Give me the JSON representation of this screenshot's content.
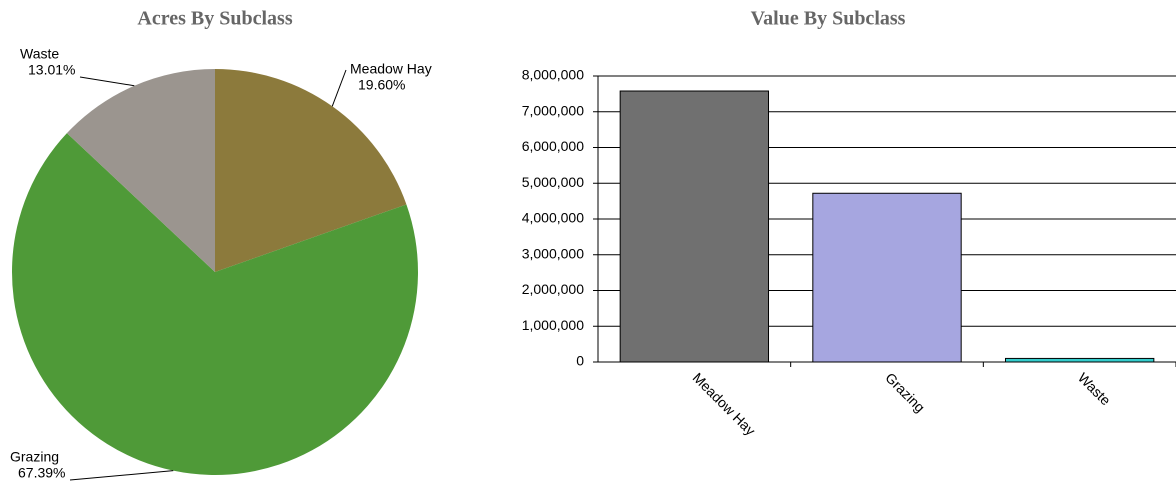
{
  "chart_data": [
    {
      "type": "pie",
      "title": "Acres By Subclass",
      "categories": [
        "Meadow Hay",
        "Grazing",
        "Waste"
      ],
      "values": [
        19.6,
        67.39,
        13.01
      ],
      "value_labels": [
        "19.60%",
        "67.39%",
        "13.01%"
      ],
      "colors": [
        "#8c7a3c",
        "#4f9a38",
        "#9b958f"
      ]
    },
    {
      "type": "bar",
      "title": "Value By Subclass",
      "categories": [
        "Meadow Hay",
        "Grazing",
        "Waste"
      ],
      "values": [
        7580000,
        4720000,
        100000
      ],
      "colors": [
        "#707070",
        "#a6a6e0",
        "#33cccc"
      ],
      "ylim": [
        0,
        8000000
      ],
      "yticks": [
        0,
        {
          "value": 1000000,
          "label": "1,000,000"
        },
        {
          "value": 2000000,
          "label": "2,000,000"
        },
        {
          "value": 3000000,
          "label": "3,000,000"
        },
        {
          "value": 4000000,
          "label": "4,000,000"
        },
        {
          "value": 5000000,
          "label": "5,000,000"
        },
        {
          "value": 6000000,
          "label": "6,000,000"
        },
        {
          "value": 7000000,
          "label": "7,000,000"
        },
        {
          "value": 8000000,
          "label": "8,000,000"
        }
      ],
      "grid": true
    }
  ]
}
